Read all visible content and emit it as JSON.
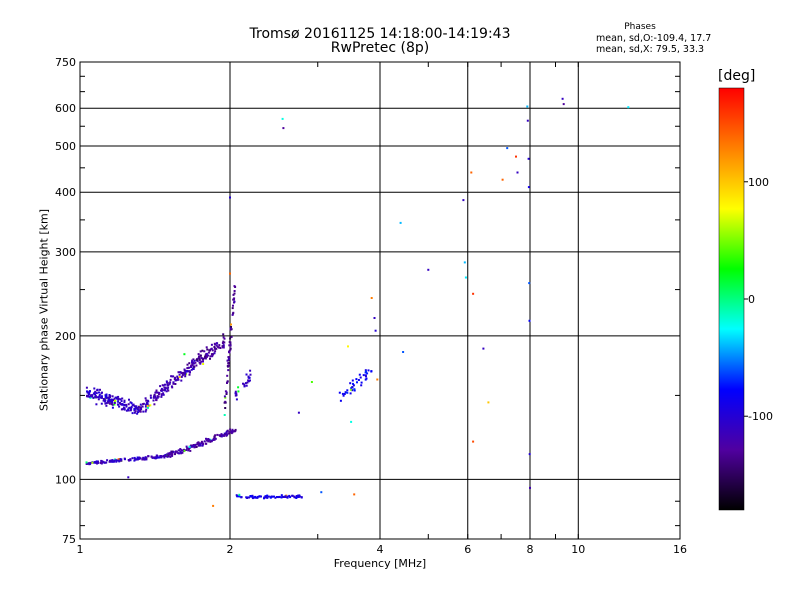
{
  "header": {
    "title_line1": "Tromsø 20161125 14:18:00-14:19:43",
    "title_line2": "RwPretec (8p)"
  },
  "phases_box": {
    "title": "Phases",
    "line_o": "mean, sd,O:-109.4, 17.7",
    "line_x": "mean, sd,X: 79.5, 33.3"
  },
  "colorbar": {
    "title": "[deg]",
    "range": [
      -180,
      180
    ],
    "tick_labels": [
      "100",
      "0",
      "-100"
    ],
    "tick_values": [
      100,
      0,
      -100
    ],
    "colors": [
      "#000000",
      "#5000a0",
      "#0000ff",
      "#00ffff",
      "#00ff00",
      "#ffff00",
      "#ff8000",
      "#ff0000"
    ]
  },
  "chart_data": {
    "type": "scatter",
    "title": "Tromsø 20161125 14:18:00-14:19:43 RwPretec (8p)",
    "xlabel": "Frequency [MHz]",
    "ylabel": "Stationary phase Virtual Height [km]",
    "xscale": "log",
    "yscale": "log",
    "xlim": [
      1,
      16
    ],
    "ylim": [
      75,
      750
    ],
    "x_ticks": [
      1,
      2,
      4,
      6,
      8,
      10,
      16
    ],
    "x_tick_labels": [
      "1",
      "2",
      "4",
      "6",
      "8",
      "10",
      "16"
    ],
    "x_grid": [
      2,
      4,
      6,
      8,
      10
    ],
    "y_ticks": [
      75,
      100,
      200,
      300,
      400,
      500,
      600,
      750
    ],
    "y_tick_labels": [
      "75",
      "100",
      "200",
      "300",
      "400",
      "500",
      "600",
      "750"
    ],
    "y_grid": [
      100,
      200,
      300,
      400,
      500,
      600
    ],
    "color_variable": "phase [deg]",
    "traces": [
      {
        "x_range": [
          1.03,
          1.32
        ],
        "y_start": 152,
        "y_end": 140,
        "phase": -108,
        "count": 170,
        "jitter_y": 0.045
      },
      {
        "x_range": [
          1.32,
          1.7
        ],
        "y_start": 140,
        "y_end": 175,
        "phase": -120,
        "count": 160,
        "jitter_y": 0.045
      },
      {
        "x_range": [
          1.7,
          1.95
        ],
        "y_start": 175,
        "y_end": 195,
        "phase": -130,
        "count": 80,
        "jitter_y": 0.05
      },
      {
        "x_range": [
          1.03,
          1.5
        ],
        "y_start": 108,
        "y_end": 112,
        "phase": -110,
        "count": 130,
        "jitter_y": 0.012
      },
      {
        "x_range": [
          1.5,
          2.06
        ],
        "y_start": 112,
        "y_end": 127,
        "phase": -125,
        "count": 140,
        "jitter_y": 0.02
      },
      {
        "x_range": [
          1.95,
          2.05
        ],
        "y_start": 140,
        "y_end": 260,
        "phase": -135,
        "count": 60,
        "jitter_y": 0.08
      },
      {
        "x_range": [
          2.05,
          2.2
        ],
        "y_start": 150,
        "y_end": 165,
        "phase": -110,
        "count": 25,
        "jitter_y": 0.04
      },
      {
        "x_range": [
          2.05,
          2.8
        ],
        "y_start": 92,
        "y_end": 92,
        "phase": -90,
        "count": 75,
        "jitter_y": 0.01
      },
      {
        "x_range": [
          3.3,
          3.85
        ],
        "y_start": 150,
        "y_end": 168,
        "phase": -80,
        "count": 40,
        "jitter_y": 0.06
      }
    ],
    "points": [
      {
        "x": 1.25,
        "y": 101,
        "phase": -110
      },
      {
        "x": 1.62,
        "y": 183,
        "phase": 20
      },
      {
        "x": 1.85,
        "y": 88,
        "phase": 130
      },
      {
        "x": 2.0,
        "y": 390,
        "phase": -100
      },
      {
        "x": 2.0,
        "y": 270,
        "phase": 140
      },
      {
        "x": 2.55,
        "y": 570,
        "phase": -20
      },
      {
        "x": 2.56,
        "y": 545,
        "phase": -130
      },
      {
        "x": 2.75,
        "y": 138,
        "phase": -110
      },
      {
        "x": 2.92,
        "y": 160,
        "phase": 40
      },
      {
        "x": 3.05,
        "y": 94,
        "phase": -60
      },
      {
        "x": 3.45,
        "y": 190,
        "phase": 80
      },
      {
        "x": 3.5,
        "y": 132,
        "phase": -20
      },
      {
        "x": 3.55,
        "y": 93,
        "phase": 140
      },
      {
        "x": 3.85,
        "y": 240,
        "phase": 130
      },
      {
        "x": 3.9,
        "y": 218,
        "phase": -110
      },
      {
        "x": 3.92,
        "y": 205,
        "phase": -100
      },
      {
        "x": 3.95,
        "y": 162,
        "phase": 130
      },
      {
        "x": 4.4,
        "y": 345,
        "phase": -40
      },
      {
        "x": 4.45,
        "y": 185,
        "phase": -60
      },
      {
        "x": 5.0,
        "y": 275,
        "phase": -110
      },
      {
        "x": 5.88,
        "y": 385,
        "phase": -110
      },
      {
        "x": 5.92,
        "y": 285,
        "phase": -40
      },
      {
        "x": 5.95,
        "y": 265,
        "phase": -30
      },
      {
        "x": 6.1,
        "y": 440,
        "phase": 140
      },
      {
        "x": 6.15,
        "y": 245,
        "phase": 160
      },
      {
        "x": 6.15,
        "y": 120,
        "phase": 150
      },
      {
        "x": 6.45,
        "y": 188,
        "phase": -110
      },
      {
        "x": 6.6,
        "y": 145,
        "phase": 100
      },
      {
        "x": 7.05,
        "y": 425,
        "phase": 140
      },
      {
        "x": 7.2,
        "y": 495,
        "phase": -60
      },
      {
        "x": 7.5,
        "y": 475,
        "phase": 160
      },
      {
        "x": 7.55,
        "y": 440,
        "phase": -110
      },
      {
        "x": 7.9,
        "y": 605,
        "phase": -40
      },
      {
        "x": 7.92,
        "y": 565,
        "phase": -110
      },
      {
        "x": 7.95,
        "y": 470,
        "phase": -100
      },
      {
        "x": 7.96,
        "y": 410,
        "phase": -90
      },
      {
        "x": 7.97,
        "y": 258,
        "phase": -60
      },
      {
        "x": 7.98,
        "y": 215,
        "phase": -80
      },
      {
        "x": 7.99,
        "y": 113,
        "phase": -100
      },
      {
        "x": 8.0,
        "y": 96,
        "phase": -120
      },
      {
        "x": 9.3,
        "y": 628,
        "phase": -110
      },
      {
        "x": 9.35,
        "y": 612,
        "phase": -130
      },
      {
        "x": 12.6,
        "y": 603,
        "phase": -30
      }
    ]
  }
}
